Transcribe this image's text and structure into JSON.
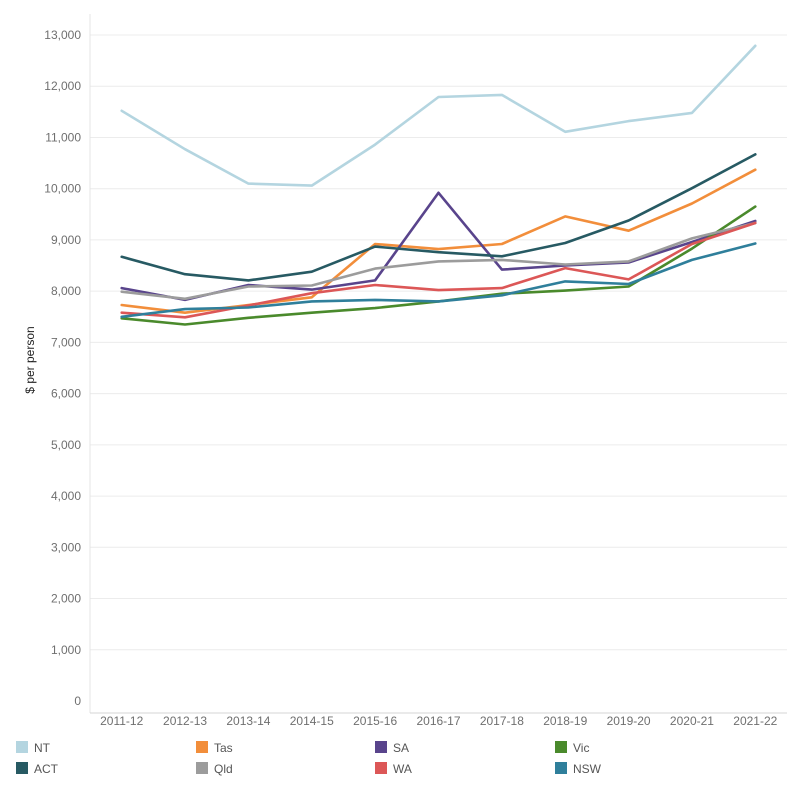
{
  "chart_data": {
    "type": "line",
    "title": "",
    "xlabel": "",
    "ylabel": "$ per person",
    "categories": [
      "2011-12",
      "2012-13",
      "2013-14",
      "2014-15",
      "2015-16",
      "2016-17",
      "2017-18",
      "2018-19",
      "2019-20",
      "2020-21",
      "2021-22"
    ],
    "ylim": [
      0,
      13500
    ],
    "yticks": [
      0,
      1000,
      2000,
      3000,
      4000,
      5000,
      6000,
      7000,
      8000,
      9000,
      10000,
      11000,
      12000,
      13000
    ],
    "ytick_labels": [
      "0",
      "1,000",
      "2,000",
      "3,000",
      "4,000",
      "5,000",
      "6,000",
      "7,000",
      "8,000",
      "9,000",
      "10,000",
      "11,000",
      "12,000",
      "13,000"
    ],
    "grid": true,
    "legend_position": "bottom",
    "series": [
      {
        "name": "NT",
        "color": "#b4d5e0",
        "values": [
          11520,
          10770,
          10100,
          10060,
          10860,
          11790,
          11830,
          11110,
          11320,
          11480,
          12790
        ]
      },
      {
        "name": "Tas",
        "color": "#f28e3b",
        "values": [
          7730,
          7580,
          7730,
          7880,
          8920,
          8820,
          8920,
          9460,
          9180,
          9710,
          10370
        ]
      },
      {
        "name": "SA",
        "color": "#59448c",
        "values": [
          8060,
          7830,
          8120,
          8030,
          8210,
          9920,
          8420,
          8500,
          8560,
          8960,
          9370
        ]
      },
      {
        "name": "Vic",
        "color": "#4a8a2c",
        "values": [
          7470,
          7350,
          7480,
          7580,
          7670,
          7800,
          7950,
          8010,
          8090,
          8830,
          9650
        ]
      },
      {
        "name": "ACT",
        "color": "#275a63",
        "values": [
          8670,
          8330,
          8210,
          8380,
          8870,
          8760,
          8680,
          8940,
          9380,
          10010,
          10670
        ]
      },
      {
        "name": "Qld",
        "color": "#9c9c9c",
        "values": [
          7990,
          7850,
          8090,
          8110,
          8440,
          8580,
          8610,
          8520,
          8580,
          9030,
          9330
        ]
      },
      {
        "name": "WA",
        "color": "#dc5757",
        "values": [
          7580,
          7490,
          7720,
          7960,
          8120,
          8020,
          8060,
          8450,
          8230,
          8920,
          9330
        ]
      },
      {
        "name": "NSW",
        "color": "#2f7f9b",
        "values": [
          7500,
          7650,
          7680,
          7800,
          7830,
          7800,
          7920,
          8190,
          8140,
          8610,
          8930
        ]
      }
    ]
  }
}
